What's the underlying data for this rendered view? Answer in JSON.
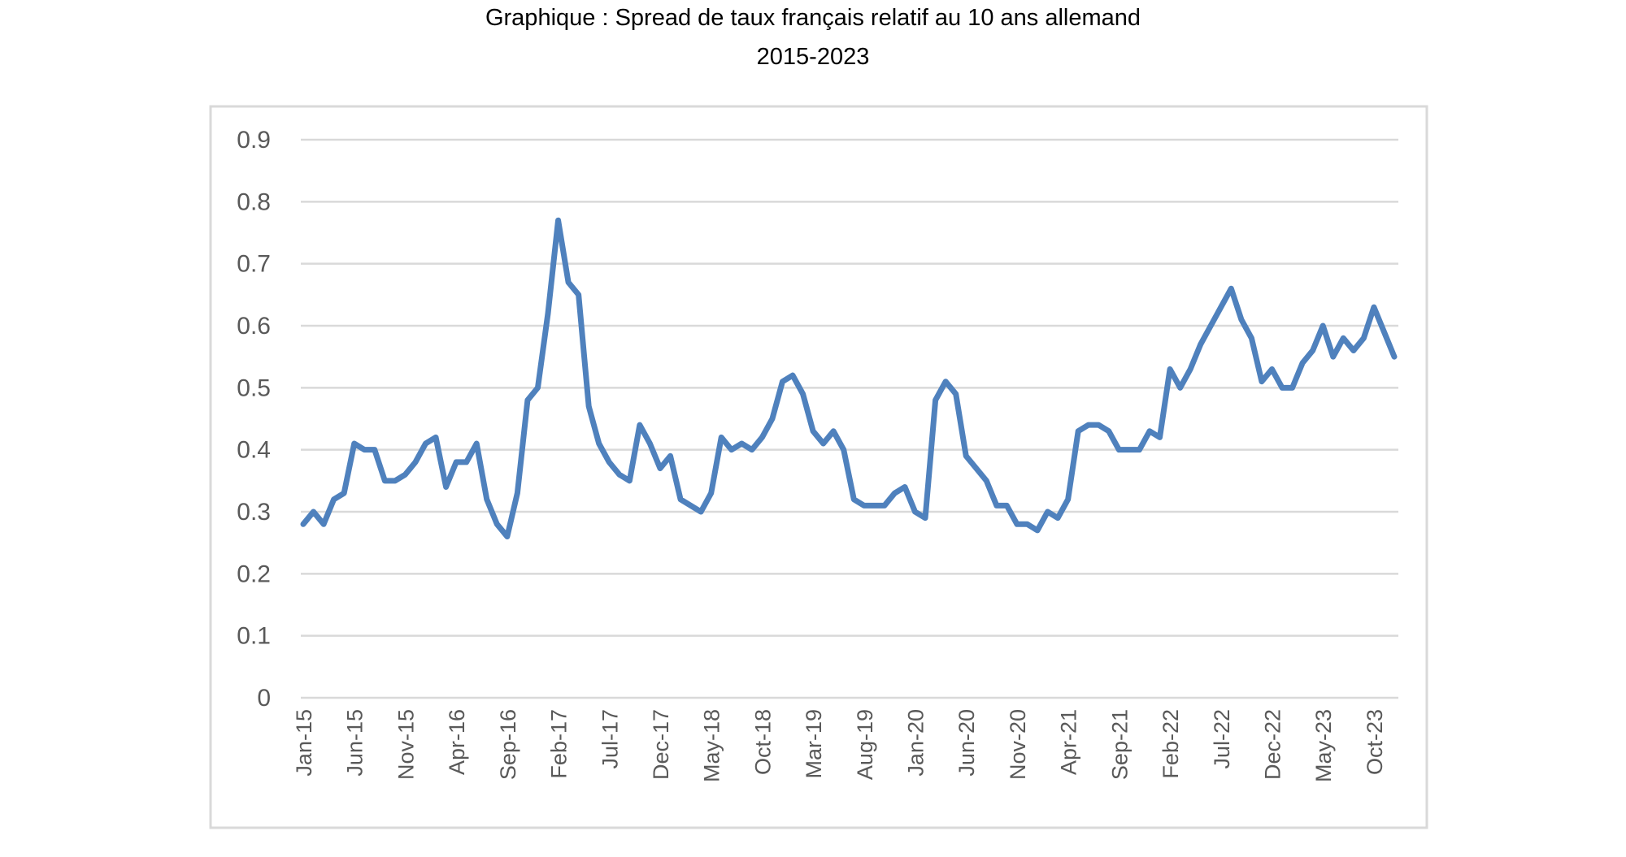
{
  "chart_data": {
    "type": "line",
    "title": "Graphique : Spread de taux français relatif au 10 ans allemand",
    "subtitle": "2015-2023",
    "xlabel": "",
    "ylabel": "",
    "ylim": [
      0,
      0.9
    ],
    "yticks": [
      "0",
      "0.1",
      "0.2",
      "0.3",
      "0.4",
      "0.5",
      "0.6",
      "0.7",
      "0.8",
      "0.9"
    ],
    "grid": true,
    "legend": "none",
    "x_tick_labels": [
      "Jan-15",
      "Jun-15",
      "Nov-15",
      "Apr-16",
      "Sep-16",
      "Feb-17",
      "Jul-17",
      "Dec-17",
      "May-18",
      "Oct-18",
      "Mar-19",
      "Aug-19",
      "Jan-20",
      "Jun-20",
      "Nov-20",
      "Apr-21",
      "Sep-21",
      "Feb-22",
      "Jul-22",
      "Dec-22",
      "May-23",
      "Oct-23"
    ],
    "series": [
      {
        "color": "#4f81bd",
        "values": [
          0.28,
          0.3,
          0.28,
          0.32,
          0.33,
          0.41,
          0.4,
          0.4,
          0.35,
          0.35,
          0.36,
          0.38,
          0.41,
          0.42,
          0.34,
          0.38,
          0.38,
          0.41,
          0.32,
          0.28,
          0.26,
          0.33,
          0.48,
          0.5,
          0.62,
          0.77,
          0.67,
          0.65,
          0.47,
          0.41,
          0.38,
          0.36,
          0.35,
          0.44,
          0.41,
          0.37,
          0.39,
          0.32,
          0.31,
          0.3,
          0.33,
          0.42,
          0.4,
          0.41,
          0.4,
          0.42,
          0.45,
          0.51,
          0.52,
          0.49,
          0.43,
          0.41,
          0.43,
          0.4,
          0.32,
          0.31,
          0.31,
          0.31,
          0.33,
          0.34,
          0.3,
          0.29,
          0.48,
          0.51,
          0.49,
          0.39,
          0.37,
          0.35,
          0.31,
          0.31,
          0.28,
          0.28,
          0.27,
          0.3,
          0.29,
          0.32,
          0.43,
          0.44,
          0.44,
          0.43,
          0.4,
          0.4,
          0.4,
          0.43,
          0.42,
          0.53,
          0.5,
          0.53,
          0.57,
          0.6,
          0.63,
          0.66,
          0.61,
          0.58,
          0.51,
          0.53,
          0.5,
          0.5,
          0.54,
          0.56,
          0.6,
          0.55,
          0.58,
          0.56,
          0.58,
          0.63,
          0.59,
          0.55
        ]
      }
    ]
  }
}
